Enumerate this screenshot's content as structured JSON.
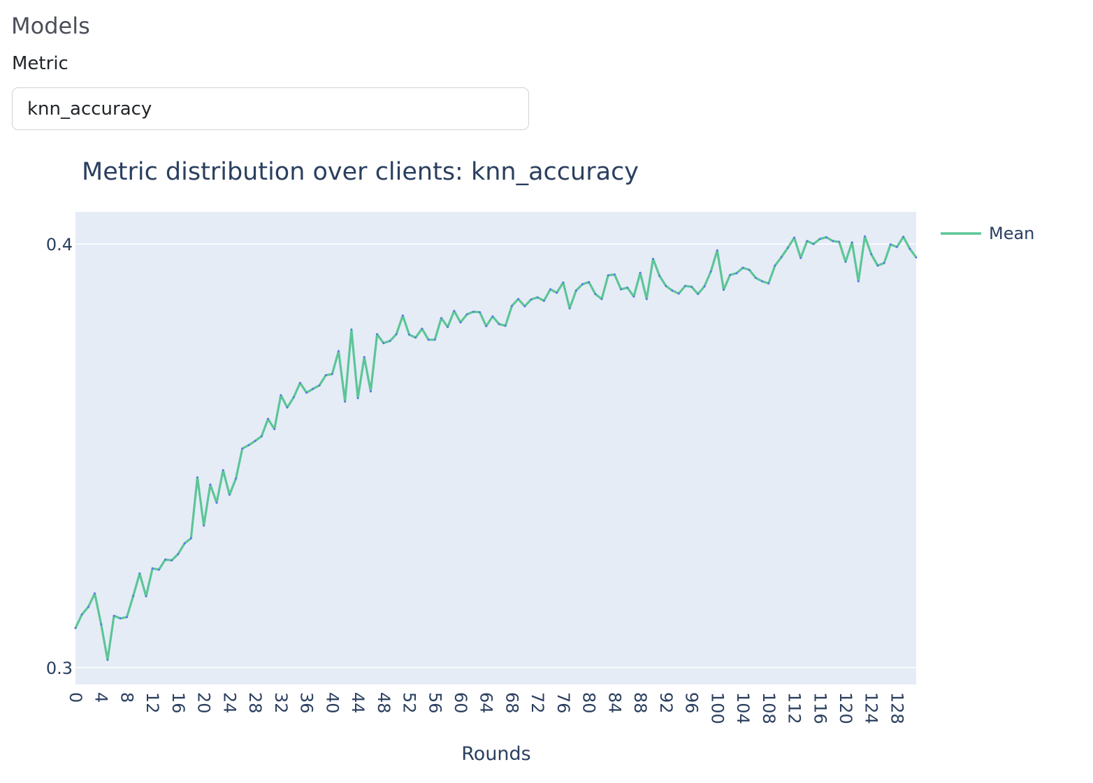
{
  "page": {
    "section_title": "Models",
    "metric_label": "Metric",
    "metric_value": "knn_accuracy"
  },
  "colors": {
    "plot_bg": "#e5ecf6",
    "grid": "#ffffff",
    "line": "#5cc597",
    "marker": "#636efa",
    "text": "#2a3f5f"
  },
  "chart_data": {
    "type": "line",
    "title": "Metric distribution over clients: knn_accuracy",
    "xlabel": "Rounds",
    "ylabel": "",
    "xlim": [
      0,
      131
    ],
    "ylim": [
      0.296,
      0.4076
    ],
    "x_ticks": [
      0,
      4,
      8,
      12,
      16,
      20,
      24,
      28,
      32,
      36,
      40,
      44,
      48,
      52,
      56,
      60,
      64,
      68,
      72,
      76,
      80,
      84,
      88,
      92,
      96,
      100,
      104,
      108,
      112,
      116,
      120,
      124,
      128
    ],
    "y_ticks": [
      0.3,
      0.4
    ],
    "y_tick_labels": [
      "0.3",
      "0.4"
    ],
    "grid": true,
    "legend_position": "top-right",
    "series": [
      {
        "name": "Mean",
        "x": [
          0,
          1,
          2,
          3,
          4,
          5,
          6,
          7,
          8,
          9,
          10,
          11,
          12,
          13,
          14,
          15,
          16,
          17,
          18,
          19,
          20,
          21,
          22,
          23,
          24,
          25,
          26,
          27,
          28,
          29,
          30,
          31,
          32,
          33,
          34,
          35,
          36,
          37,
          38,
          39,
          40,
          41,
          42,
          43,
          44,
          45,
          46,
          47,
          48,
          49,
          50,
          51,
          52,
          53,
          54,
          55,
          56,
          57,
          58,
          59,
          60,
          61,
          62,
          63,
          64,
          65,
          66,
          67,
          68,
          69,
          70,
          71,
          72,
          73,
          74,
          75,
          76,
          77,
          78,
          79,
          80,
          81,
          82,
          83,
          84,
          85,
          86,
          87,
          88,
          89,
          90,
          91,
          92,
          93,
          94,
          95,
          96,
          97,
          98,
          99,
          100,
          101,
          102,
          103,
          104,
          105,
          106,
          107,
          108,
          109,
          110,
          111,
          112,
          113,
          114,
          115,
          116,
          117,
          118,
          119,
          120,
          121,
          122,
          123,
          124,
          125,
          126,
          127,
          128,
          129,
          130,
          131
        ],
        "values": [
          0.3093,
          0.3125,
          0.3143,
          0.3175,
          0.3102,
          0.3018,
          0.3122,
          0.3116,
          0.3119,
          0.3169,
          0.3222,
          0.3168,
          0.3234,
          0.3231,
          0.3255,
          0.3253,
          0.3268,
          0.3293,
          0.3305,
          0.3449,
          0.3335,
          0.3432,
          0.3389,
          0.3466,
          0.3408,
          0.3446,
          0.3517,
          0.3525,
          0.3535,
          0.3546,
          0.3587,
          0.3563,
          0.3643,
          0.3614,
          0.3638,
          0.3672,
          0.3649,
          0.3658,
          0.3666,
          0.369,
          0.3693,
          0.3747,
          0.3628,
          0.3798,
          0.3636,
          0.3733,
          0.3652,
          0.3787,
          0.3766,
          0.3771,
          0.3787,
          0.3831,
          0.3786,
          0.3779,
          0.38,
          0.3774,
          0.3774,
          0.3825,
          0.3804,
          0.3842,
          0.3815,
          0.3834,
          0.384,
          0.3839,
          0.3806,
          0.3829,
          0.3811,
          0.3807,
          0.3854,
          0.387,
          0.3853,
          0.3869,
          0.3874,
          0.3866,
          0.3893,
          0.3885,
          0.3909,
          0.3848,
          0.389,
          0.3905,
          0.391,
          0.3882,
          0.387,
          0.3926,
          0.3928,
          0.3893,
          0.3897,
          0.3876,
          0.3932,
          0.387,
          0.3965,
          0.3925,
          0.3901,
          0.389,
          0.3883,
          0.3901,
          0.3899,
          0.3882,
          0.39,
          0.3935,
          0.3985,
          0.3892,
          0.3927,
          0.3931,
          0.3944,
          0.3939,
          0.392,
          0.3912,
          0.3907,
          0.3949,
          0.3969,
          0.3991,
          0.4015,
          0.3967,
          0.4007,
          0.4,
          0.4012,
          0.4016,
          0.4007,
          0.4005,
          0.3958,
          0.4004,
          0.3912,
          0.4018,
          0.3976,
          0.3949,
          0.3955,
          0.3999,
          0.3993,
          0.4017,
          0.3989,
          0.3968
        ]
      }
    ]
  }
}
